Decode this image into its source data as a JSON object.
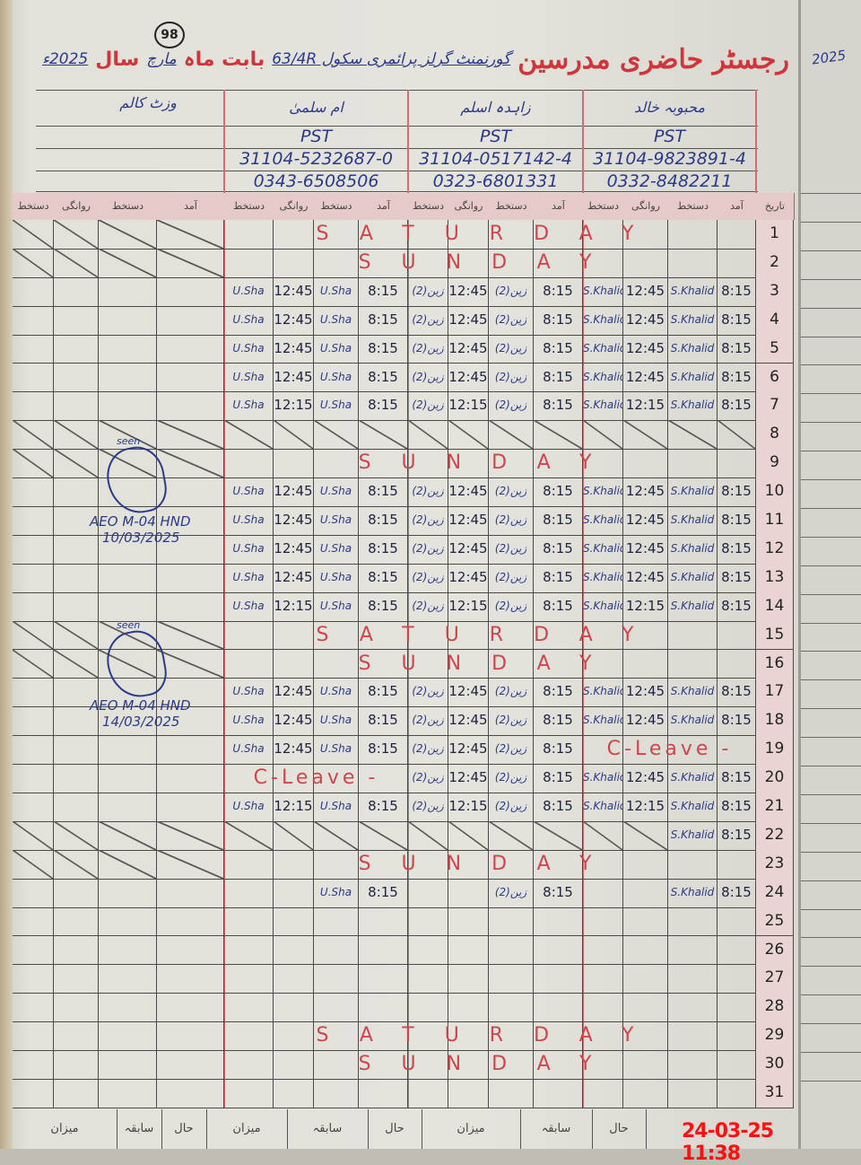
{
  "page_number": "98",
  "title": {
    "register": "رجسٹر حاضری مدرسین",
    "school": "گورنمنٹ گرلز پرائمری سکول 63/4R",
    "month_label": "بابت ماہ",
    "month": "مارچ",
    "year_label": "سال",
    "year": "2025ء"
  },
  "visit_column_label": "وزٹ کالم",
  "date_header": "تاریخ",
  "column_headers": {
    "arrival": "آمد",
    "signature": "دستخط",
    "departure": "روانگی"
  },
  "teachers": [
    {
      "name": "محبوبہ خالد",
      "designation": "PST",
      "cnic": "31104-9823891-4",
      "phone": "0332-8482211",
      "signature": "S.Khalid"
    },
    {
      "name": "زاہدہ اسلم",
      "designation": "PST",
      "cnic": "31104-0517142-4",
      "phone": "0323-6801331",
      "signature": "(2)زین"
    },
    {
      "name": "ام سلمیٰ",
      "designation": "PST",
      "cnic": "31104-5232687-0",
      "phone": "0343-6508506",
      "signature": "U.Sha"
    }
  ],
  "rows": [
    {
      "day": "1",
      "holiday": "SATURDAY",
      "crossed_out": true
    },
    {
      "day": "2",
      "holiday": "SUNDAY",
      "crossed_out": true
    },
    {
      "day": "3",
      "entries": [
        {
          "in": "8:15",
          "out": "12:45"
        },
        {
          "in": "8:15",
          "out": "12:45"
        },
        {
          "in": "8:15",
          "out": "12:45"
        }
      ]
    },
    {
      "day": "4",
      "entries": [
        {
          "in": "8:15",
          "out": "12:45"
        },
        {
          "in": "8:15",
          "out": "12:45"
        },
        {
          "in": "8:15",
          "out": "12:45"
        }
      ]
    },
    {
      "day": "5",
      "entries": [
        {
          "in": "8:15",
          "out": "12:45"
        },
        {
          "in": "8:15",
          "out": "12:45"
        },
        {
          "in": "8:15",
          "out": "12:45"
        }
      ]
    },
    {
      "day": "6",
      "entries": [
        {
          "in": "8:15",
          "out": "12:45"
        },
        {
          "in": "8:15",
          "out": "12:45"
        },
        {
          "in": "8:15",
          "out": "12:45"
        }
      ]
    },
    {
      "day": "7",
      "entries": [
        {
          "in": "8:15",
          "out": "12:15"
        },
        {
          "in": "8:15",
          "out": "12:15"
        },
        {
          "in": "8:15",
          "out": "12:15"
        }
      ]
    },
    {
      "day": "8",
      "crossed_out": true
    },
    {
      "day": "9",
      "holiday": "SUNDAY",
      "crossed_out": true
    },
    {
      "day": "10",
      "entries": [
        {
          "in": "8:15",
          "out": "12:45"
        },
        {
          "in": "8:15",
          "out": "12:45"
        },
        {
          "in": "8:15",
          "out": "12:45"
        }
      ]
    },
    {
      "day": "11",
      "entries": [
        {
          "in": "8:15",
          "out": "12:45"
        },
        {
          "in": "8:15",
          "out": "12:45"
        },
        {
          "in": "8:15",
          "out": "12:45"
        }
      ]
    },
    {
      "day": "12",
      "entries": [
        {
          "in": "8:15",
          "out": "12:45"
        },
        {
          "in": "8:15",
          "out": "12:45"
        },
        {
          "in": "8:15",
          "out": "12:45"
        }
      ]
    },
    {
      "day": "13",
      "entries": [
        {
          "in": "8:15",
          "out": "12:45"
        },
        {
          "in": "8:15",
          "out": "12:45"
        },
        {
          "in": "8:15",
          "out": "12:45"
        }
      ]
    },
    {
      "day": "14",
      "entries": [
        {
          "in": "8:15",
          "out": "12:15"
        },
        {
          "in": "8:15",
          "out": "12:15"
        },
        {
          "in": "8:15",
          "out": "12:15"
        }
      ]
    },
    {
      "day": "15",
      "holiday": "SATURDAY",
      "crossed_out": true
    },
    {
      "day": "16",
      "holiday": "SUNDAY",
      "crossed_out": true
    },
    {
      "day": "17",
      "entries": [
        {
          "in": "8:15",
          "out": "12:45"
        },
        {
          "in": "8:15",
          "out": "12:45"
        },
        {
          "in": "8:15",
          "out": "12:45"
        }
      ]
    },
    {
      "day": "18",
      "entries": [
        {
          "in": "8:15",
          "out": "12:45"
        },
        {
          "in": "8:15",
          "out": "12:45"
        },
        {
          "in": "8:15",
          "out": "12:45"
        }
      ]
    },
    {
      "day": "19",
      "entries": [
        {
          "leave": "C-Leave -"
        },
        {
          "in": "8:15",
          "out": "12:45"
        },
        {
          "in": "8:15",
          "out": "12:45"
        }
      ]
    },
    {
      "day": "20",
      "entries": [
        {
          "in": "8:15",
          "out": "12:45"
        },
        {
          "in": "8:15",
          "out": "12:45"
        },
        {
          "leave": "C-Leave -"
        }
      ]
    },
    {
      "day": "21",
      "entries": [
        {
          "in": "8:15",
          "out": "12:15"
        },
        {
          "in": "8:15",
          "out": "12:15"
        },
        {
          "in": "8:15",
          "out": "12:15"
        }
      ]
    },
    {
      "day": "22",
      "crossed_out": true,
      "entries": [
        {
          "in": "8:15"
        },
        null,
        null
      ]
    },
    {
      "day": "23",
      "holiday": "SUNDAY",
      "crossed_out": true
    },
    {
      "day": "24",
      "entries": [
        {
          "in": "8:15"
        },
        {
          "in": "8:15"
        },
        {
          "in": "8:15"
        }
      ]
    },
    {
      "day": "25"
    },
    {
      "day": "26"
    },
    {
      "day": "27"
    },
    {
      "day": "28"
    },
    {
      "day": "29",
      "holiday": "SATURDAY"
    },
    {
      "day": "30",
      "holiday": "SUNDAY"
    },
    {
      "day": "31"
    }
  ],
  "visits": [
    {
      "seen": "seen",
      "office": "AEO M-04 HND",
      "date": "10/03/2025"
    },
    {
      "seen": "seen",
      "office": "AEO M-04 HND",
      "date": "14/03/2025"
    }
  ],
  "footer": {
    "total": "میزان",
    "previous": "سابقہ",
    "current": "حال"
  },
  "timestamp": "24-03-25 11:38",
  "left_page_year": "2025",
  "colors": {
    "ink_blue": "#2a3a8a",
    "ink_red": "#d0353c",
    "timestamp": "#ff1010"
  }
}
